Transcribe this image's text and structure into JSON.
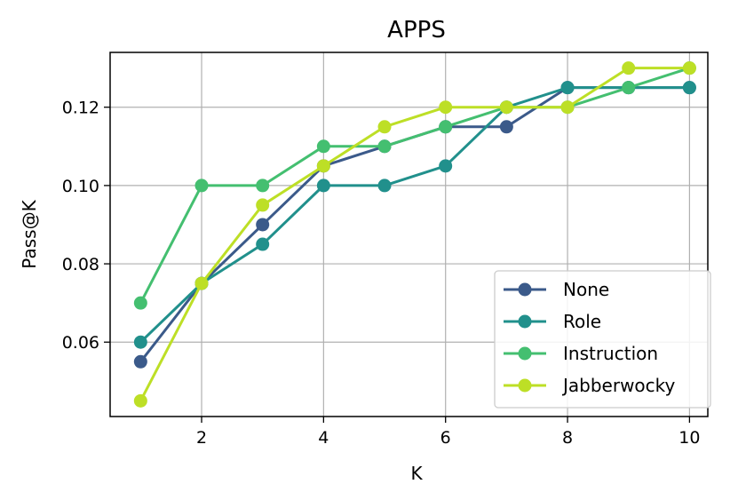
{
  "chart_data": {
    "type": "line",
    "title": "APPS",
    "xlabel": "K",
    "ylabel": "Pass@K",
    "x": [
      1,
      2,
      3,
      4,
      5,
      6,
      7,
      8,
      9,
      10
    ],
    "xlim": [
      0.5,
      10.3
    ],
    "ylim": [
      0.041,
      0.134
    ],
    "xticks": [
      2,
      4,
      6,
      8,
      10
    ],
    "xtick_labels": [
      "2",
      "4",
      "6",
      "8",
      "10"
    ],
    "yticks": [
      0.06,
      0.08,
      0.1,
      0.12
    ],
    "ytick_labels": [
      "0.06",
      "0.08",
      "0.10",
      "0.12"
    ],
    "grid": true,
    "legend_position": "lower-right",
    "series": [
      {
        "name": "None",
        "color": "#3b5a8a",
        "values": [
          0.055,
          0.075,
          0.09,
          0.105,
          0.11,
          0.115,
          0.115,
          0.125,
          0.125,
          0.125
        ]
      },
      {
        "name": "Role",
        "color": "#21908c",
        "values": [
          0.06,
          0.075,
          0.085,
          0.1,
          0.1,
          0.105,
          0.12,
          0.125,
          0.125,
          0.125
        ]
      },
      {
        "name": "Instruction",
        "color": "#44bf70",
        "values": [
          0.07,
          0.1,
          0.1,
          0.11,
          0.11,
          0.115,
          0.12,
          0.12,
          0.125,
          0.13
        ]
      },
      {
        "name": "Jabberwocky",
        "color": "#bddf26",
        "values": [
          0.045,
          0.075,
          0.095,
          0.105,
          0.115,
          0.12,
          0.12,
          0.12,
          0.13,
          0.13
        ]
      }
    ]
  }
}
